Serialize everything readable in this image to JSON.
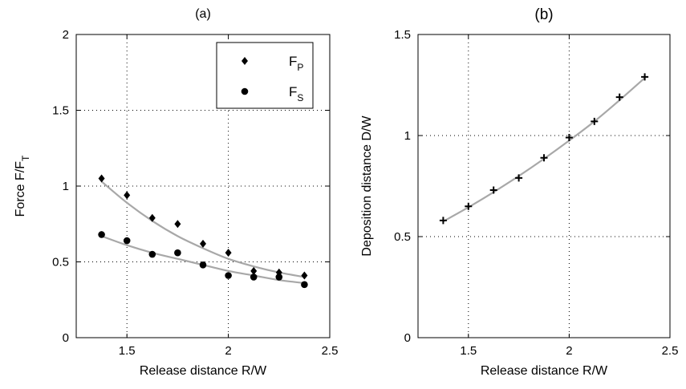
{
  "chart_data": [
    {
      "id": "a",
      "type": "scatter",
      "title": "(a)",
      "xlabel": "Release distance R/W",
      "ylabel": "Force F/F",
      "ylabel_sub": "T",
      "xlim": [
        1.25,
        2.5
      ],
      "ylim": [
        0,
        2
      ],
      "xticks": [
        "1.5",
        "2",
        "2.5"
      ],
      "xtick_values": [
        1.5,
        2,
        2.5
      ],
      "yticks": [
        "0",
        "0.5",
        "1",
        "1.5",
        "2"
      ],
      "ytick_values": [
        0,
        0.5,
        1,
        1.5,
        2
      ],
      "grid": true,
      "legend_position": "top-right",
      "legend": [
        {
          "base": "F",
          "sub": "P",
          "marker": "diamond"
        },
        {
          "base": "F",
          "sub": "S",
          "marker": "circle"
        }
      ],
      "x": [
        1.375,
        1.5,
        1.625,
        1.75,
        1.875,
        2.0,
        2.125,
        2.25,
        2.375
      ],
      "series": [
        {
          "marker": "diamond",
          "values": [
            1.05,
            0.94,
            0.79,
            0.75,
            0.62,
            0.56,
            0.44,
            0.43,
            0.41
          ],
          "fit": [
            1.03,
            0.89,
            0.77,
            0.67,
            0.59,
            0.52,
            0.47,
            0.43,
            0.4
          ]
        },
        {
          "marker": "circle",
          "values": [
            0.68,
            0.64,
            0.55,
            0.56,
            0.48,
            0.41,
            0.4,
            0.4,
            0.35
          ],
          "fit": [
            0.67,
            0.61,
            0.56,
            0.52,
            0.48,
            0.44,
            0.41,
            0.38,
            0.36
          ]
        }
      ],
      "fit_color": "#a8a8a8"
    },
    {
      "id": "b",
      "type": "scatter",
      "title": "(b)",
      "xlabel": "Release distance R/W",
      "ylabel": "Deposition distance D/W",
      "xlim": [
        1.25,
        2.5
      ],
      "ylim": [
        0,
        1.5
      ],
      "xticks": [
        "1.5",
        "2",
        "2.5"
      ],
      "xtick_values": [
        1.5,
        2,
        2.5
      ],
      "yticks": [
        "0",
        "0.5",
        "1",
        "1.5"
      ],
      "ytick_values": [
        0,
        0.5,
        1,
        1.5
      ],
      "grid": true,
      "x": [
        1.375,
        1.5,
        1.625,
        1.75,
        1.875,
        2.0,
        2.125,
        2.25,
        2.375
      ],
      "series": [
        {
          "marker": "plus",
          "values": [
            0.58,
            0.65,
            0.73,
            0.79,
            0.89,
            0.99,
            1.07,
            1.19,
            1.29
          ],
          "fit": [
            0.575,
            0.645,
            0.72,
            0.8,
            0.885,
            0.975,
            1.07,
            1.175,
            1.285
          ]
        }
      ],
      "fit_color": "#a8a8a8"
    }
  ]
}
